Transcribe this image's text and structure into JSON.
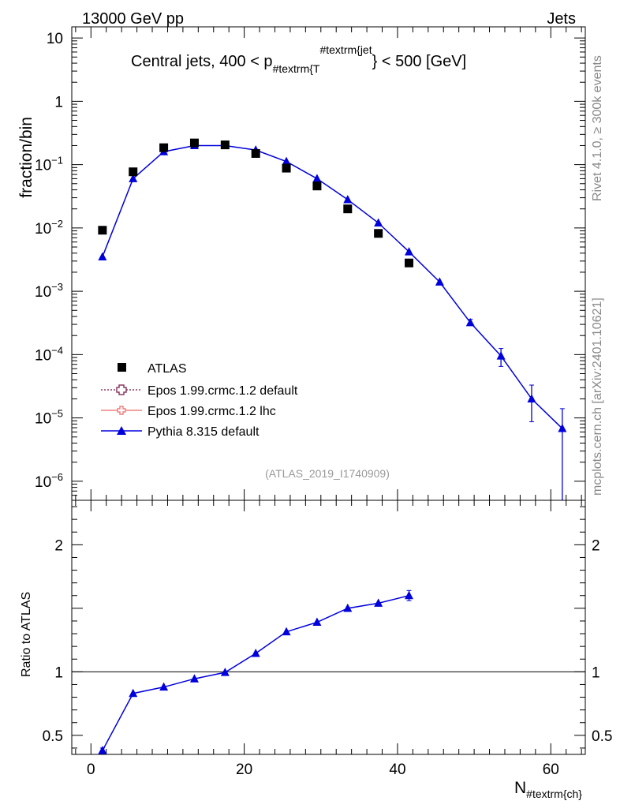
{
  "header": {
    "left": "13000 GeV pp",
    "right": "Jets"
  },
  "side_labels": {
    "upper": "Rivet 4.1.0, ≥ 300k events",
    "lower": "mcplots.cern.ch [arXiv:2401.10621]"
  },
  "analysis_ref": "(ATLAS_2019_I1740909)",
  "colors": {
    "atlas": "#000000",
    "epos_default": "#8b3a62",
    "epos_lhc": "#f08080",
    "pythia": "#0000dd"
  },
  "chart_data": [
    {
      "type": "scatter",
      "title": {
        "main": "Central jets, 400 < p",
        "sub1": "#textrm{T",
        "sup": "#textrm{jet",
        "tail": "} < 500 [GeV]"
      },
      "xlabel": "",
      "ylabel": "fraction/bin",
      "yscale": "log",
      "xlim": [
        -2.5,
        64.5
      ],
      "ylim": [
        5e-07,
        15
      ],
      "y_ticks": [
        {
          "v": 1e-06,
          "base": "10",
          "exp": "−6"
        },
        {
          "v": 1e-05,
          "base": "10",
          "exp": "−5"
        },
        {
          "v": 0.0001,
          "base": "10",
          "exp": "−4"
        },
        {
          "v": 0.001,
          "base": "10",
          "exp": "−3"
        },
        {
          "v": 0.01,
          "base": "10",
          "exp": "−2"
        },
        {
          "v": 0.1,
          "base": "10",
          "exp": "−1"
        },
        {
          "v": 1,
          "base": "1",
          "exp": ""
        },
        {
          "v": 10,
          "base": "10",
          "exp": ""
        }
      ],
      "legend": [
        {
          "label": "ATLAS",
          "marker": "square"
        },
        {
          "label": "Epos 1.99.crmc.1.2 default",
          "marker": "open-cross"
        },
        {
          "label": "Epos 1.99.crmc.1.2 lhc",
          "marker": "open-cross"
        },
        {
          "label": "Pythia 8.315 default",
          "marker": "triangle"
        }
      ],
      "series": [
        {
          "name": "ATLAS",
          "x": [
            1.5,
            5.5,
            9.5,
            13.5,
            17.5,
            21.5,
            25.5,
            29.5,
            33.5,
            37.5,
            41.5
          ],
          "y": [
            0.0092,
            0.077,
            0.185,
            0.22,
            0.205,
            0.15,
            0.088,
            0.046,
            0.02,
            0.0082,
            0.0028
          ]
        },
        {
          "name": "Pythia 8.315 default",
          "x": [
            1.5,
            5.5,
            9.5,
            13.5,
            17.5,
            21.5,
            25.5,
            29.5,
            33.5,
            37.5,
            41.5,
            45.5,
            49.5,
            53.5,
            57.5,
            61.5
          ],
          "y": [
            0.0035,
            0.06,
            0.16,
            0.2,
            0.2,
            0.17,
            0.112,
            0.06,
            0.028,
            0.012,
            0.0042,
            0.0014,
            0.00032,
            9.5e-05,
            2e-05,
            6.8e-06
          ],
          "err_lo": [
            0,
            0,
            0,
            0,
            0,
            0,
            0,
            0,
            0,
            0,
            0,
            0,
            3e-05,
            3e-05,
            1.13e-05,
            6.8e-06
          ],
          "err_hi": [
            0,
            0,
            0,
            0,
            0,
            0,
            0,
            0,
            0,
            0,
            0,
            0,
            4e-05,
            3e-05,
            1.3e-05,
            7.2e-06
          ]
        }
      ]
    },
    {
      "type": "line",
      "xlabel_main": "N",
      "xlabel_sub": "#textrm{ch}",
      "ylabel": "Ratio to ATLAS",
      "xlim": [
        -2.5,
        64.5
      ],
      "ylim": [
        0.35,
        2.35
      ],
      "x_ticks": [
        0,
        20,
        40,
        60
      ],
      "y_ticks_left": [
        {
          "v": 0.5,
          "label": "0.5"
        },
        {
          "v": 1,
          "label": "1"
        },
        {
          "v": 2,
          "label": "2"
        }
      ],
      "y_ticks_right": [
        {
          "v": 0.5,
          "label": "0.5"
        },
        {
          "v": 1,
          "label": "1"
        },
        {
          "v": 2,
          "label": "2"
        }
      ],
      "reference": 1,
      "series": [
        {
          "name": "Pythia 8.315 default",
          "x": [
            1.5,
            5.5,
            9.5,
            13.5,
            17.5,
            21.5,
            25.5,
            29.5,
            33.5,
            37.5,
            41.5
          ],
          "y": [
            0.38,
            0.83,
            0.88,
            0.945,
            0.995,
            1.145,
            1.315,
            1.39,
            1.5,
            1.54,
            1.6
          ],
          "err": [
            0.02,
            0,
            0,
            0,
            0,
            0,
            0,
            0,
            0,
            0,
            0.04
          ]
        }
      ]
    }
  ]
}
